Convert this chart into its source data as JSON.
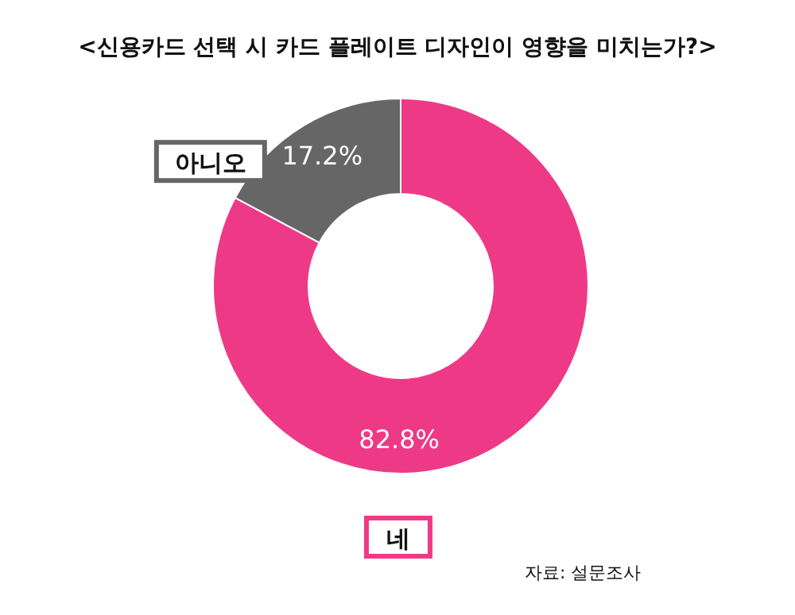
{
  "chart_data": {
    "type": "donut",
    "title": "<신용카드 선택 시 카드 플레이트 디자인이 영향을 미치는가?>",
    "categories": [
      "네",
      "아니오"
    ],
    "values": [
      82.8,
      17.2
    ],
    "colors": [
      "#ee3a86",
      "#666666"
    ],
    "value_labels": [
      "82.8%",
      "17.2%"
    ],
    "annotations": [
      "자료: 설문조사"
    ]
  }
}
